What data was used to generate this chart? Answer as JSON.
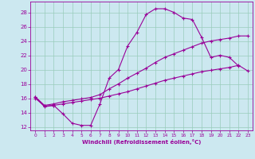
{
  "background_color": "#cce8f0",
  "grid_color": "#99ccbb",
  "line_color": "#990099",
  "xlabel": "Windchill (Refroidissement éolien,°C)",
  "xlim": [
    -0.5,
    23.5
  ],
  "ylim": [
    11.5,
    29.5
  ],
  "yticks": [
    12,
    14,
    16,
    18,
    20,
    22,
    24,
    26,
    28
  ],
  "xticks": [
    0,
    1,
    2,
    3,
    4,
    5,
    6,
    7,
    8,
    9,
    10,
    11,
    12,
    13,
    14,
    15,
    16,
    17,
    18,
    19,
    20,
    21,
    22,
    23
  ],
  "series1_x": [
    0,
    1,
    2,
    3,
    4,
    5,
    6,
    7,
    8,
    9,
    10,
    11,
    12,
    13,
    14,
    15,
    16,
    17,
    18,
    19,
    20,
    21,
    22
  ],
  "series1_y": [
    16.2,
    14.8,
    15.0,
    13.8,
    12.5,
    12.2,
    12.2,
    15.2,
    18.8,
    20.0,
    23.3,
    25.2,
    27.7,
    28.5,
    28.5,
    28.0,
    27.2,
    27.0,
    24.5,
    21.7,
    22.0,
    21.7,
    20.5
  ],
  "series2_x": [
    0,
    1,
    2,
    3,
    4,
    5,
    6,
    7,
    8,
    9,
    10,
    11,
    12,
    13,
    14,
    15,
    16,
    17,
    18,
    19,
    20,
    21,
    22,
    23
  ],
  "series2_y": [
    16.2,
    15.0,
    15.2,
    15.5,
    15.7,
    15.9,
    16.1,
    16.5,
    17.3,
    18.0,
    18.8,
    19.5,
    20.2,
    21.0,
    21.7,
    22.2,
    22.7,
    23.2,
    23.7,
    24.0,
    24.2,
    24.4,
    24.7,
    24.7
  ],
  "series3_x": [
    0,
    1,
    2,
    3,
    4,
    5,
    6,
    7,
    8,
    9,
    10,
    11,
    12,
    13,
    14,
    15,
    16,
    17,
    18,
    19,
    20,
    21,
    22,
    23
  ],
  "series3_y": [
    16.0,
    14.9,
    15.0,
    15.2,
    15.4,
    15.6,
    15.8,
    16.0,
    16.3,
    16.6,
    16.9,
    17.3,
    17.7,
    18.1,
    18.5,
    18.8,
    19.1,
    19.4,
    19.7,
    19.9,
    20.1,
    20.3,
    20.6,
    19.8
  ]
}
